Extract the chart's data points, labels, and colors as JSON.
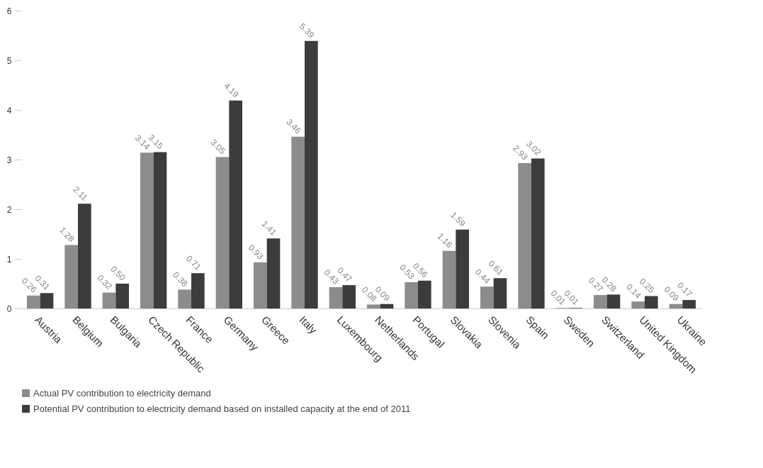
{
  "chart_data": {
    "type": "bar",
    "categories": [
      "Austria",
      "Belgium",
      "Bulgaria",
      "Czech Republic",
      "France",
      "Germany",
      "Greece",
      "Italy",
      "Luxembourg",
      "Netherlands",
      "Portugal",
      "Slovakia",
      "Slovenia",
      "Spain",
      "Sweden",
      "Switzerland",
      "United Kingdom",
      "Ukraine"
    ],
    "series": [
      {
        "name": "Actual PV contribution to electricity demand",
        "color": "#8c8c8c",
        "values": [
          0.26,
          1.28,
          0.32,
          3.14,
          0.38,
          3.05,
          0.93,
          3.46,
          0.43,
          0.08,
          0.53,
          1.16,
          0.44,
          2.93,
          0.01,
          0.27,
          0.14,
          0.09
        ]
      },
      {
        "name": "Potential PV contribution to electricity demand based on installed capacity at the end of 2011",
        "color": "#3c3c3c",
        "values": [
          0.31,
          2.11,
          0.5,
          3.15,
          0.71,
          4.19,
          1.41,
          5.39,
          0.47,
          0.09,
          0.56,
          1.59,
          0.61,
          3.02,
          0.01,
          0.28,
          0.25,
          0.17
        ],
        "value_labels": [
          "0.31",
          "2.11",
          "0.50",
          "3.15",
          "0.71",
          "4.19",
          "1.41",
          "5.39",
          "0.47",
          "0.09",
          "0.56",
          "1.59",
          "0.61",
          "3.02",
          "0.01",
          "0.28",
          "0.25",
          "0.17"
        ]
      }
    ],
    "ylim": [
      0,
      6
    ],
    "yticks": [
      0,
      1,
      2,
      3,
      4,
      5,
      6
    ],
    "grid": false,
    "legend": "bottom",
    "data_labels": true
  }
}
